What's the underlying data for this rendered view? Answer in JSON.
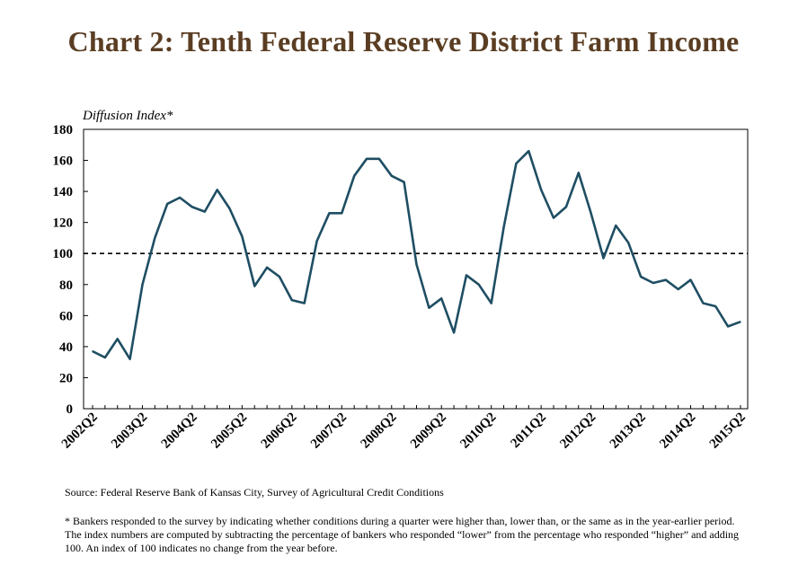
{
  "title": "Chart 2: Tenth Federal Reserve District Farm Income",
  "source": "Source: Federal Reserve Bank of Kansas City, Survey of Agricultural Credit Conditions",
  "note": "* Bankers responded to the survey by indicating whether conditions during a quarter were higher than, lower than, or the same as in the year-earlier period. The index numbers are computed by subtracting the percentage of bankers who responded “lower” from the percentage who responded “higher” and adding 100. An index of 100 indicates no change from the year before.",
  "colors": {
    "line": "#1f4e63",
    "title": "#5a3d22",
    "reference": "#000000"
  },
  "chart_data": {
    "type": "line",
    "ylabel": "Diffusion Index*",
    "ylim": [
      0,
      180
    ],
    "yticks": [
      0,
      20,
      40,
      60,
      80,
      100,
      120,
      140,
      160,
      180
    ],
    "x_tick_labels": [
      "2002Q2",
      "2003Q2",
      "2004Q2",
      "2005Q2",
      "2006Q2",
      "2007Q2",
      "2008Q2",
      "2009Q2",
      "2010Q2",
      "2011Q2",
      "2012Q2",
      "2013Q2",
      "2014Q2",
      "2015Q2"
    ],
    "reference_line": 100,
    "grid": false,
    "x": [
      "2002Q2",
      "2002Q3",
      "2002Q4",
      "2003Q1",
      "2003Q2",
      "2003Q3",
      "2003Q4",
      "2004Q1",
      "2004Q2",
      "2004Q3",
      "2004Q4",
      "2005Q1",
      "2005Q2",
      "2005Q3",
      "2005Q4",
      "2006Q1",
      "2006Q2",
      "2006Q3",
      "2006Q4",
      "2007Q1",
      "2007Q2",
      "2007Q3",
      "2007Q4",
      "2008Q1",
      "2008Q2",
      "2008Q3",
      "2008Q4",
      "2009Q1",
      "2009Q2",
      "2009Q3",
      "2009Q4",
      "2010Q1",
      "2010Q2",
      "2010Q3",
      "2010Q4",
      "2011Q1",
      "2011Q2",
      "2011Q3",
      "2011Q4",
      "2012Q1",
      "2012Q2",
      "2012Q3",
      "2012Q4",
      "2013Q1",
      "2013Q2",
      "2013Q3",
      "2013Q4",
      "2014Q1",
      "2014Q2",
      "2014Q3",
      "2014Q4",
      "2015Q1",
      "2015Q2"
    ],
    "series": [
      {
        "values": [
          37,
          33,
          45,
          32,
          80,
          110,
          132,
          136,
          130,
          127,
          141,
          129,
          111,
          79,
          91,
          85,
          70,
          68,
          108,
          126,
          126,
          150,
          161,
          161,
          150,
          146,
          93,
          65,
          71,
          49,
          86,
          80,
          68,
          117,
          158,
          166,
          141,
          123,
          130,
          152,
          126,
          97,
          118,
          107,
          85,
          81,
          83,
          77,
          83,
          68,
          66,
          53,
          56
        ]
      }
    ]
  }
}
